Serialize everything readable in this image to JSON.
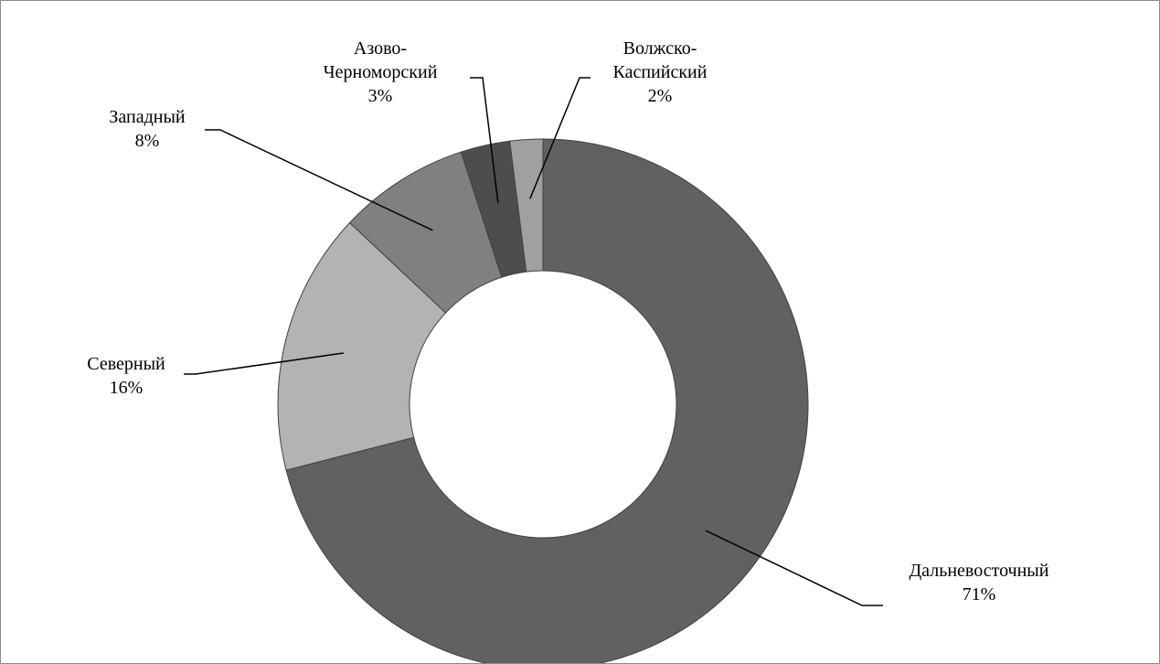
{
  "chart_data": {
    "type": "pie",
    "donut": true,
    "title": "",
    "legend": "none",
    "start_angle_deg": 0,
    "direction": "clockwise",
    "slices": [
      {
        "id": "far-east",
        "label_lines": [
          "Дальневосточный"
        ],
        "pct_label": "71%",
        "value": 71,
        "color": "#616161"
      },
      {
        "id": "north",
        "label_lines": [
          "Северный"
        ],
        "pct_label": "16%",
        "value": 16,
        "color": "#b3b3b3"
      },
      {
        "id": "west",
        "label_lines": [
          "Западный"
        ],
        "pct_label": "8%",
        "value": 8,
        "color": "#808080"
      },
      {
        "id": "azov-black-sea",
        "label_lines": [
          "Азово-",
          "Черноморский"
        ],
        "pct_label": "3%",
        "value": 3,
        "color": "#4d4d4d"
      },
      {
        "id": "volga-caspian",
        "label_lines": [
          "Волжско-",
          "Каспийский"
        ],
        "pct_label": "2%",
        "value": 2,
        "color": "#a0a0a0"
      }
    ]
  }
}
